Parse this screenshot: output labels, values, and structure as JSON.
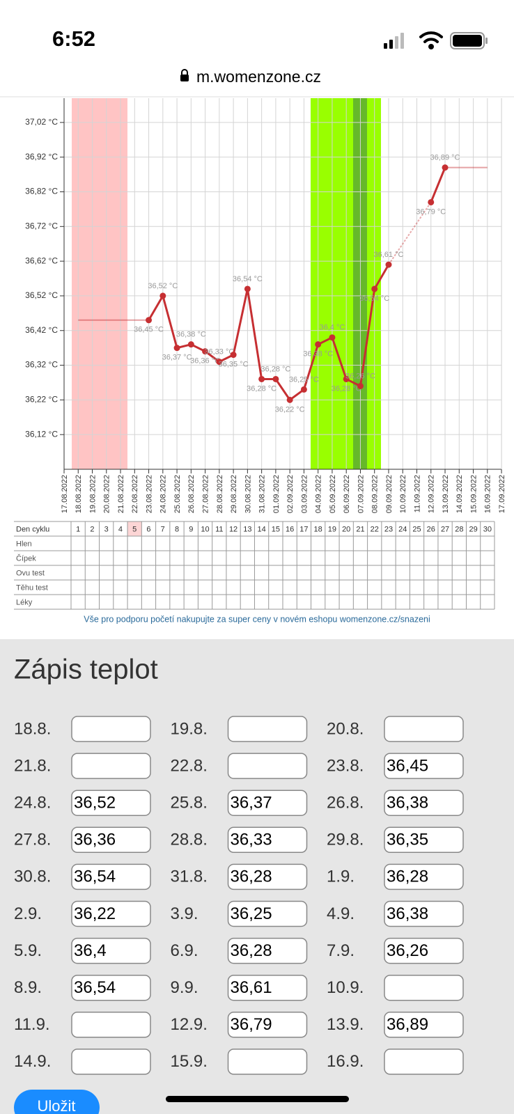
{
  "status_bar": {
    "time": "6:52",
    "url": "m.womenzone.cz"
  },
  "chart_data": {
    "type": "line",
    "categories": [
      "17.08.2022",
      "18.08.2022",
      "19.08.2022",
      "20.08.2022",
      "21.08.2022",
      "22.08.2022",
      "23.08.2022",
      "24.08.2022",
      "25.08.2022",
      "26.08.2022",
      "27.08.2022",
      "28.08.2022",
      "29.08.2022",
      "30.08.2022",
      "31.08.2022",
      "01.09.2022",
      "02.09.2022",
      "03.09.2022",
      "04.09.2022",
      "05.09.2022",
      "06.09.2022",
      "07.09.2022",
      "08.09.2022",
      "09.09.2022",
      "10.09.2022",
      "11.09.2022",
      "12.09.2022",
      "13.09.2022",
      "14.09.2022",
      "15.09.2022",
      "16.09.2022",
      "17.09.2022"
    ],
    "values": [
      null,
      null,
      null,
      null,
      null,
      null,
      36.45,
      36.52,
      36.37,
      36.38,
      36.36,
      36.33,
      36.35,
      36.54,
      36.28,
      36.28,
      36.22,
      36.25,
      36.38,
      36.4,
      36.28,
      36.26,
      36.54,
      36.61,
      null,
      null,
      36.79,
      36.89,
      null,
      null,
      null,
      null
    ],
    "value_labels": [
      null,
      null,
      null,
      null,
      null,
      null,
      "36,45 °C",
      "36,52 °C",
      "36,37 °C",
      "36,38 °C",
      "36,36 °C",
      "36,33 °C",
      "36,35 °C",
      "36,54 °C",
      "36,28 °C",
      "36,28 °C",
      "36,22 °C",
      "36,25 °C",
      "36,38 °C",
      "36,4 °C",
      "36,28 °C",
      "36,26 °C",
      "36,54 °C",
      "36,61 °C",
      null,
      null,
      "36,79 °C",
      "36,89 °C",
      null,
      null,
      null,
      null
    ],
    "color": "#c62f32",
    "ylim": [
      36.02,
      37.09
    ],
    "yticks": [
      {
        "value": 36.12,
        "label": "36,12 °C"
      },
      {
        "value": 36.22,
        "label": "36,22 °C"
      },
      {
        "value": 36.32,
        "label": "36,32 °C"
      },
      {
        "value": 36.42,
        "label": "36,42 °C"
      },
      {
        "value": 36.52,
        "label": "36,52 °C"
      },
      {
        "value": 36.62,
        "label": "36,62 °C"
      },
      {
        "value": 36.72,
        "label": "36,72 °C"
      },
      {
        "value": 36.82,
        "label": "36,82 °C"
      },
      {
        "value": 36.92,
        "label": "36,92 °C"
      },
      {
        "value": 37.02,
        "label": "37,02 °C"
      }
    ],
    "grid": true
  },
  "cycle_table": {
    "header": "Den cyklu",
    "days": [
      1,
      2,
      3,
      4,
      5,
      6,
      7,
      8,
      9,
      10,
      11,
      12,
      13,
      14,
      15,
      16,
      17,
      18,
      19,
      20,
      21,
      22,
      23,
      24,
      25,
      26,
      27,
      28,
      29,
      30
    ],
    "rows": [
      "Hlen",
      "Čípek",
      "Ovu test",
      "Těhu test",
      "Léky"
    ]
  },
  "promo": "Vše pro podporu početí nakupujte za super ceny v novém eshopu womenzone.cz/snazeni",
  "form": {
    "title": "Zápis teplot",
    "entries": [
      {
        "date": "18.8."
      },
      {
        "date": "19.8."
      },
      {
        "date": "20.8."
      },
      {
        "date": "21.8."
      },
      {
        "date": "22.8."
      },
      {
        "date": "23.8.",
        "value": "36,45"
      },
      {
        "date": "24.8.",
        "value": "36,52"
      },
      {
        "date": "25.8.",
        "value": "36,37"
      },
      {
        "date": "26.8.",
        "value": "36,38"
      },
      {
        "date": "27.8.",
        "value": "36,36"
      },
      {
        "date": "28.8.",
        "value": "36,33"
      },
      {
        "date": "29.8.",
        "value": "36,35"
      },
      {
        "date": "30.8.",
        "value": "36,54"
      },
      {
        "date": "31.8.",
        "value": "36,28"
      },
      {
        "date": "1.9.",
        "value": "36,28"
      },
      {
        "date": "2.9.",
        "value": "36,22"
      },
      {
        "date": "3.9.",
        "value": "36,25"
      },
      {
        "date": "4.9.",
        "value": "36,38"
      },
      {
        "date": "5.9.",
        "value": "36,4"
      },
      {
        "date": "6.9.",
        "value": "36,28"
      },
      {
        "date": "7.9.",
        "value": "36,26"
      },
      {
        "date": "8.9.",
        "value": "36,54"
      },
      {
        "date": "9.9.",
        "value": "36,61"
      },
      {
        "date": "10.9."
      },
      {
        "date": "11.9."
      },
      {
        "date": "12.9.",
        "value": "36,79"
      },
      {
        "date": "13.9.",
        "value": "36,89"
      },
      {
        "date": "14.9."
      },
      {
        "date": "15.9."
      },
      {
        "date": "16.9."
      }
    ],
    "button": "Uložit"
  }
}
